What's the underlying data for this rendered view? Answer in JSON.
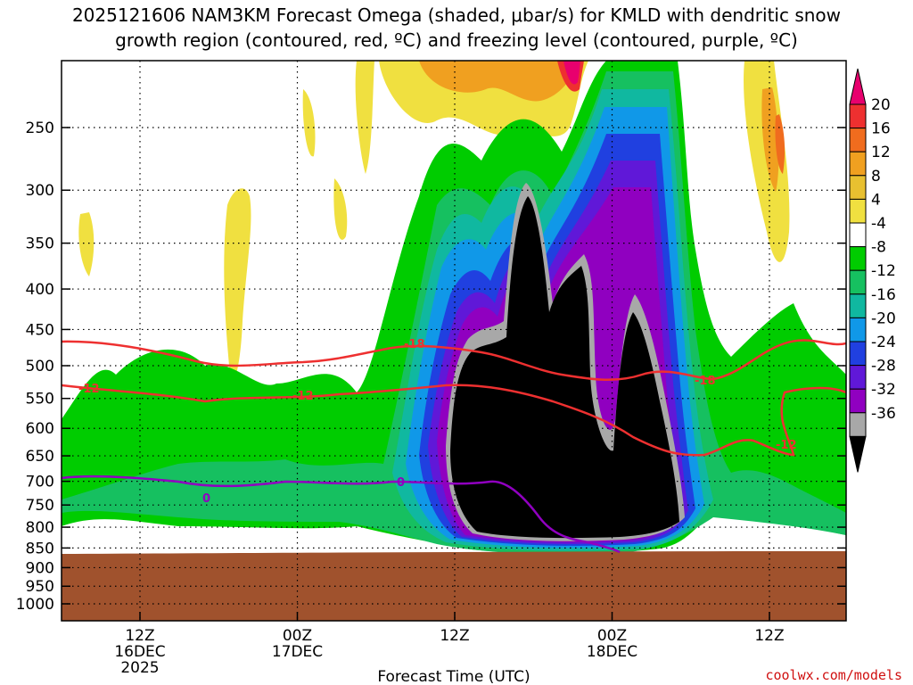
{
  "chart_data": {
    "type": "heatmap",
    "title_line1": "2025121606 NAM3KM Forecast Omega (shaded, μbar/s) for KMLD with dendritic snow",
    "title_line2": "growth region (contoured, red, ºC) and freezing level (contoured, purple, ºC)",
    "xlabel": "Forecast Time (UTC)",
    "credit": "coolwx.com/models",
    "y_axis": {
      "scale": "log",
      "inverted": true,
      "range_mb": [
        1000,
        200
      ],
      "ticks": [
        250,
        300,
        350,
        400,
        450,
        500,
        550,
        600,
        650,
        700,
        750,
        800,
        850,
        900,
        950,
        1000
      ]
    },
    "x_axis": {
      "ticks": [
        {
          "line1": "12Z",
          "line2": "16DEC",
          "line3": "2025"
        },
        {
          "line1": "00Z",
          "line2": "17DEC",
          "line3": ""
        },
        {
          "line1": "12Z",
          "line2": "",
          "line3": ""
        },
        {
          "line1": "00Z",
          "line2": "18DEC",
          "line3": ""
        },
        {
          "line1": "12Z",
          "line2": "",
          "line3": ""
        }
      ]
    },
    "grid": true,
    "colorbar": {
      "labels": [
        "20",
        "16",
        "12",
        "8",
        "4",
        "-4",
        "-8",
        "-12",
        "-16",
        "-20",
        "-24",
        "-28",
        "-32",
        "-36"
      ],
      "colors": [
        "#e8006e",
        "#ee3030",
        "#f06c1e",
        "#f0a020",
        "#e8c030",
        "#f0e040",
        "#ffffff",
        "#00cc00",
        "#16c060",
        "#10b8a0",
        "#1098e8",
        "#2040e0",
        "#6018d8",
        "#9000c0",
        "#a8a8a8",
        "#000000"
      ]
    },
    "contour_labels": {
      "dgz_upper": "-18",
      "dgz_lower": "-12",
      "freezing": "0"
    },
    "colors": {
      "ground": "#a0522d",
      "dgz_contour": "#ee3030",
      "freezing_contour": "#9000c0"
    }
  }
}
